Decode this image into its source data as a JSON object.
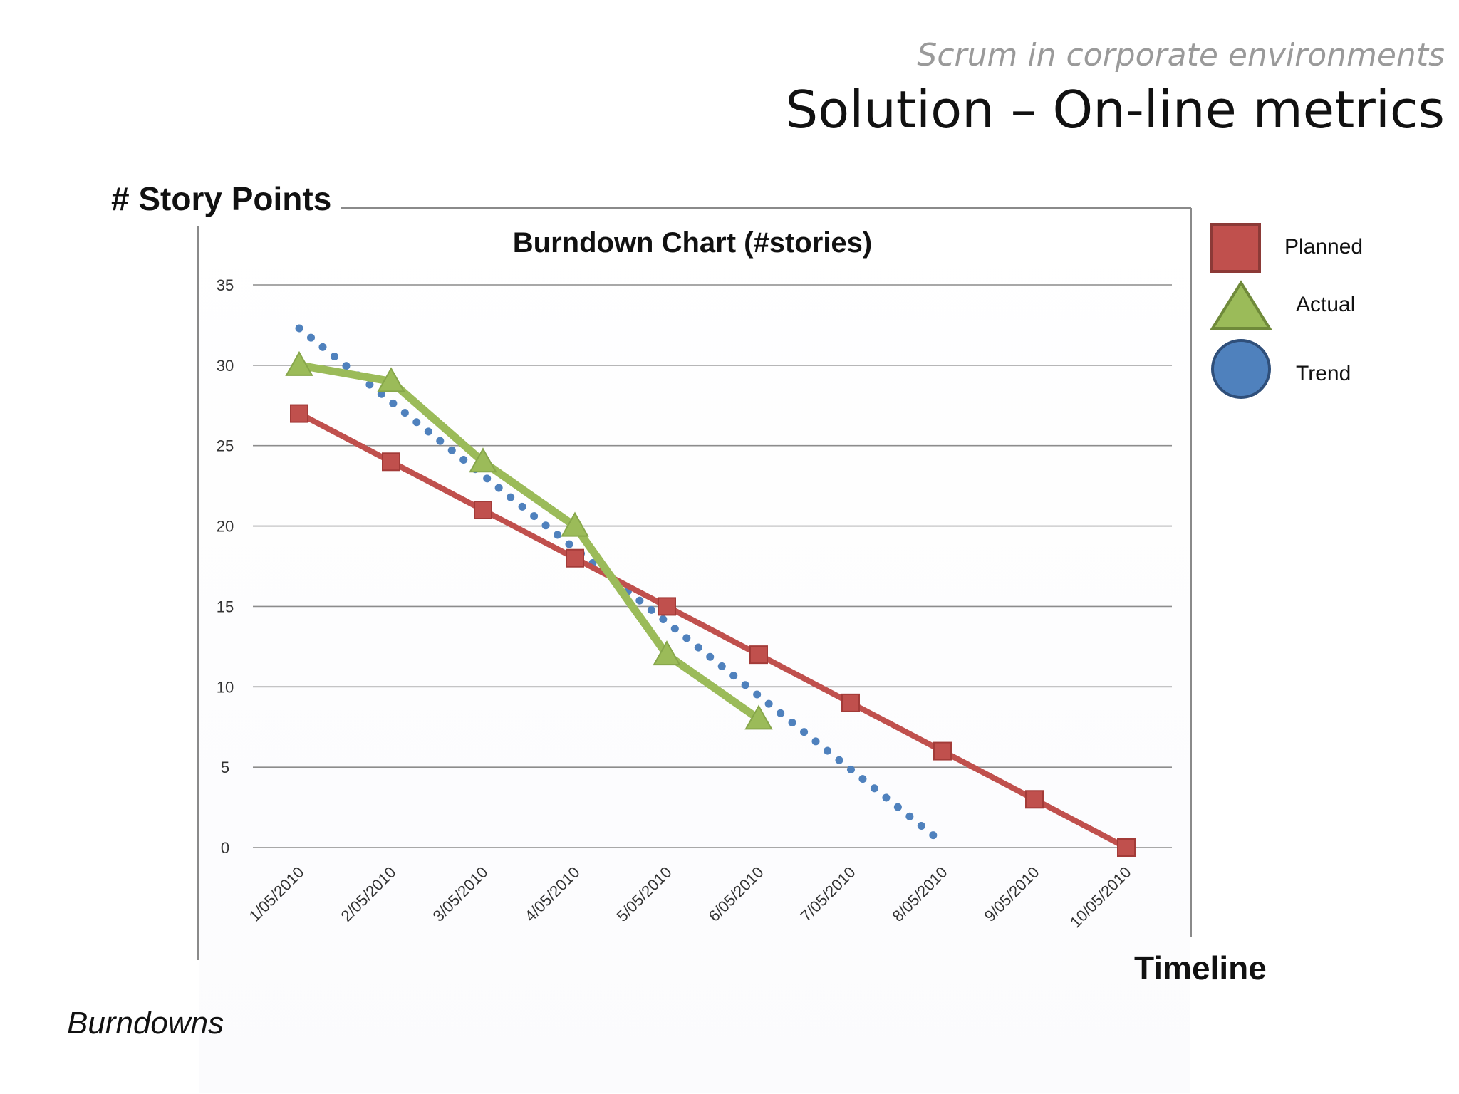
{
  "header": {
    "subtitle": "Scrum in corporate environments",
    "title": "Solution – On-line metrics"
  },
  "footer": {
    "text": "Burndowns"
  },
  "chart_data": {
    "type": "line",
    "title": "Burndown Chart (#stories)",
    "ylabel": "# Story Points",
    "xlabel": "Timeline",
    "categories": [
      "1/05/2010",
      "2/05/2010",
      "3/05/2010",
      "4/05/2010",
      "5/05/2010",
      "6/05/2010",
      "7/05/2010",
      "8/05/2010",
      "9/05/2010",
      "10/05/2010"
    ],
    "ylim": [
      0,
      35
    ],
    "yticks": [
      0,
      5,
      10,
      15,
      20,
      25,
      30,
      35
    ],
    "grid": true,
    "legend_position": "right",
    "series": [
      {
        "name": "Planned",
        "marker": "square",
        "color": "#c0504d",
        "values": [
          27,
          24,
          21,
          18,
          15,
          12,
          9,
          6,
          3,
          0
        ]
      },
      {
        "name": "Actual",
        "marker": "triangle",
        "color": "#9bbb59",
        "values": [
          30,
          29,
          24,
          20,
          12,
          8,
          null,
          null,
          null,
          null
        ]
      },
      {
        "name": "Trend",
        "marker": "circle",
        "color": "#4f81bd",
        "style": "dotted",
        "values": [
          32.3,
          null,
          null,
          null,
          null,
          null,
          null,
          0.3,
          null,
          null
        ]
      }
    ]
  }
}
